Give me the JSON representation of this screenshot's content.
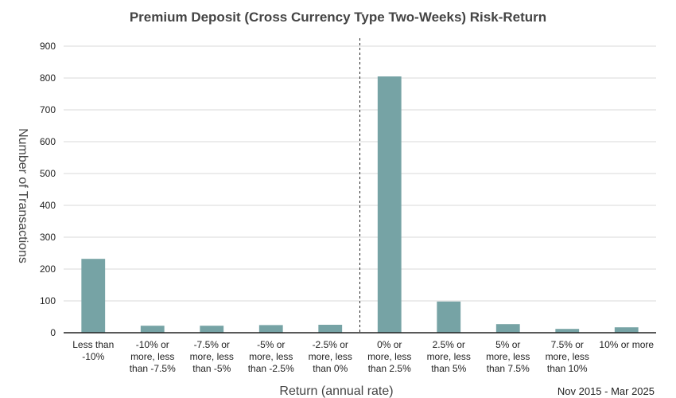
{
  "chart_data": {
    "type": "bar",
    "title": "Premium Deposit (Cross Currency Type Two-Weeks) Risk-Return",
    "xlabel": "Return (annual rate)",
    "ylabel": "Number of Transactions",
    "ylim": [
      0,
      900
    ],
    "yticks": [
      0,
      100,
      200,
      300,
      400,
      500,
      600,
      700,
      800,
      900
    ],
    "grid": true,
    "categories": [
      [
        "Less than",
        "-10%"
      ],
      [
        "-10% or",
        "more, less",
        "than -7.5%"
      ],
      [
        "-7.5% or",
        "more, less",
        "than -5%"
      ],
      [
        "-5% or",
        "more, less",
        "than -2.5%"
      ],
      [
        "-2.5% or",
        "more, less",
        "than 0%"
      ],
      [
        "0% or",
        "more, less",
        "than 2.5%"
      ],
      [
        "2.5% or",
        "more, less",
        "than 5%"
      ],
      [
        "5% or",
        "more, less",
        "than 7.5%"
      ],
      [
        "7.5% or",
        "more, less",
        "than 10%"
      ],
      [
        "10% or more"
      ]
    ],
    "values": [
      232,
      22,
      22,
      24,
      25,
      805,
      98,
      27,
      12,
      17
    ],
    "divider_after_category_index": 4,
    "bar_color": "#76a3a5",
    "note": "Nov 2015 - Mar 2025"
  }
}
